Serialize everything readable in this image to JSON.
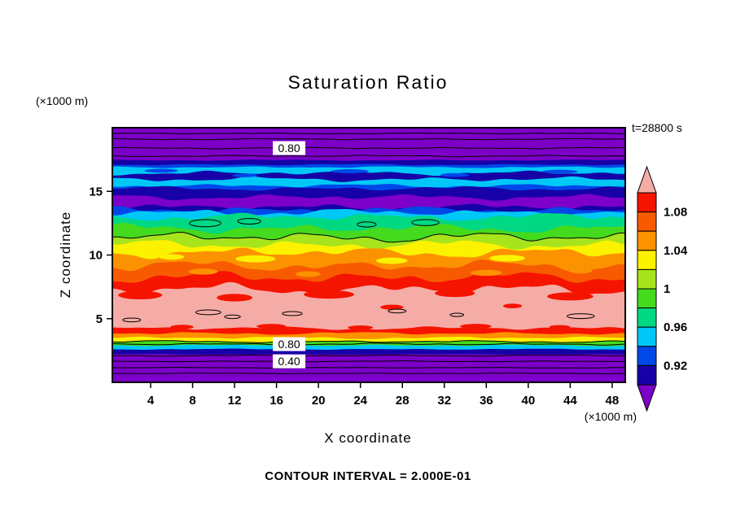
{
  "chart_data": {
    "type": "filled_contour",
    "title": "Saturation Ratio",
    "xlabel": "X coordinate",
    "ylabel": "Z coordinate",
    "x_unit": "(×1000 m)",
    "y_unit": "(×1000 m)",
    "time_label": "t=28800 s",
    "contour_interval_label": "CONTOUR INTERVAL = 2.000E-01",
    "x_ticks": [
      4,
      8,
      12,
      16,
      20,
      24,
      28,
      32,
      36,
      40,
      44,
      48
    ],
    "y_ticks": [
      5,
      10,
      15
    ],
    "xlim": [
      0.35,
      49.25
    ],
    "ylim": [
      0,
      20
    ],
    "grid": false,
    "legend_position": "right-colorbar",
    "palette": {
      "purple": "#7C00C8",
      "navy": "#1600A6",
      "blue": "#0048E8",
      "cyan": "#00C8F6",
      "spring": "#00D884",
      "green": "#44DA1E",
      "ygreen": "#A8E41C",
      "yellow": "#FCF200",
      "orange": "#FC9200",
      "orangered": "#F85A00",
      "red": "#F51400",
      "salmon": "#F6ACA6"
    },
    "colorbar": {
      "levels": [
        0.9,
        0.92,
        0.94,
        0.96,
        0.98,
        1.0,
        1.02,
        1.04,
        1.06,
        1.08,
        1.1
      ],
      "segment_colors": [
        "red",
        "orangered",
        "orange",
        "yellow",
        "ygreen",
        "green",
        "spring",
        "cyan",
        "blue",
        "navy"
      ],
      "arrow_top": "salmon",
      "arrow_bottom": "purple",
      "labels": [
        {
          "text": "1.08",
          "boundary": 1
        },
        {
          "text": "1.04",
          "boundary": 3
        },
        {
          "text": "1",
          "boundary": 5
        },
        {
          "text": "0.96",
          "boundary": 7
        },
        {
          "text": "0.92",
          "boundary": 9
        }
      ]
    },
    "boundaries": [
      {
        "z": 20.0,
        "amp": 0.0,
        "seed": 0
      },
      {
        "z": 17.45,
        "amp": 0.05,
        "seed": 11
      },
      {
        "z": 17.1,
        "amp": 0.07,
        "seed": 12
      },
      {
        "z": 16.9,
        "amp": 0.08,
        "seed": 34
      },
      {
        "z": 15.45,
        "amp": 0.18,
        "seed": 13
      },
      {
        "z": 15.22,
        "amp": 0.2,
        "seed": 35
      },
      {
        "z": 14.55,
        "amp": 0.26,
        "seed": 14
      },
      {
        "z": 13.75,
        "amp": 0.3,
        "seed": 15
      },
      {
        "z": 13.55,
        "amp": 0.31,
        "seed": 36
      },
      {
        "z": 13.35,
        "amp": 0.32,
        "seed": 16
      },
      {
        "z": 13.0,
        "amp": 0.35,
        "seed": 17
      },
      {
        "z": 12.1,
        "amp": 0.42,
        "seed": 18
      },
      {
        "z": 11.4,
        "amp": 0.44,
        "seed": 19
      },
      {
        "z": 10.8,
        "amp": 0.44,
        "seed": 20
      },
      {
        "z": 10.2,
        "amp": 0.48,
        "seed": 21
      },
      {
        "z": 9.15,
        "amp": 0.5,
        "seed": 22
      },
      {
        "z": 8.25,
        "amp": 0.52,
        "seed": 23
      },
      {
        "z": 7.3,
        "amp": 0.55,
        "seed": 24
      },
      {
        "z": 4.25,
        "amp": 0.16,
        "seed": 25
      },
      {
        "z": 3.85,
        "amp": 0.13,
        "seed": 26
      },
      {
        "z": 3.5,
        "amp": 0.11,
        "seed": 27
      },
      {
        "z": 3.2,
        "amp": 0.09,
        "seed": 28
      },
      {
        "z": 2.9,
        "amp": 0.07,
        "seed": 29
      },
      {
        "z": 2.6,
        "amp": 0.05,
        "seed": 30
      },
      {
        "z": 2.2,
        "amp": 0.03,
        "seed": 33
      },
      {
        "z": 0.0,
        "amp": 0.0,
        "seed": 1
      }
    ],
    "bands": [
      {
        "from": 0,
        "to": 1,
        "color": "purple",
        "value": "< 0.90"
      },
      {
        "from": 1,
        "to": 2,
        "color": "navy",
        "value": "0.90-0.92"
      },
      {
        "from": 2,
        "to": 3,
        "color": "blue",
        "value": "0.92-0.94"
      },
      {
        "from": 3,
        "to": 4,
        "color": "cyan",
        "value": "0.94-0.96"
      },
      {
        "from": 4,
        "to": 5,
        "color": "blue",
        "value": "0.92-0.94"
      },
      {
        "from": 5,
        "to": 6,
        "color": "navy",
        "value": "0.90-0.92"
      },
      {
        "from": 6,
        "to": 7,
        "color": "purple",
        "value": "< 0.90"
      },
      {
        "from": 7,
        "to": 8,
        "color": "navy",
        "value": "0.90-0.92"
      },
      {
        "from": 8,
        "to": 9,
        "color": "blue",
        "value": "0.92-0.94"
      },
      {
        "from": 9,
        "to": 10,
        "color": "cyan",
        "value": "0.94-0.96"
      },
      {
        "from": 10,
        "to": 11,
        "color": "spring",
        "value": "0.96-0.98"
      },
      {
        "from": 11,
        "to": 12,
        "color": "green",
        "value": "0.98-1.00"
      },
      {
        "from": 12,
        "to": 13,
        "color": "ygreen",
        "value": "1.00-1.02"
      },
      {
        "from": 13,
        "to": 14,
        "color": "yellow",
        "value": "1.02-1.04"
      },
      {
        "from": 14,
        "to": 15,
        "color": "orange",
        "value": "1.04-1.06"
      },
      {
        "from": 15,
        "to": 16,
        "color": "orangered",
        "value": "1.06-1.08"
      },
      {
        "from": 16,
        "to": 17,
        "color": "red",
        "value": "1.08-1.10"
      },
      {
        "from": 17,
        "to": 18,
        "color": "salmon",
        "value": "> 1.10"
      },
      {
        "from": 18,
        "to": 19,
        "color": "red",
        "value": "1.08-1.10"
      },
      {
        "from": 19,
        "to": 20,
        "color": "orange",
        "value": "1.04-1.06"
      },
      {
        "from": 20,
        "to": 21,
        "color": "yellow",
        "value": "1.02-1.04"
      },
      {
        "from": 21,
        "to": 22,
        "color": "green",
        "value": "0.98-1.00"
      },
      {
        "from": 22,
        "to": 23,
        "color": "cyan",
        "value": "0.94-0.96"
      },
      {
        "from": 23,
        "to": 24,
        "color": "navy",
        "value": "0.90-0.92"
      },
      {
        "from": 24,
        "to": 25,
        "color": "purple",
        "value": "< 0.90"
      }
    ],
    "overlay_bands": [
      {
        "color": "navy",
        "top": {
          "z": 16.45,
          "amp": 0.22,
          "seed": 31
        },
        "bottom": {
          "z": 15.95,
          "amp": 0.22,
          "seed": 32
        }
      }
    ],
    "blobs": [
      {
        "x": 5,
        "z": 16.62,
        "rx": 1.6,
        "ry": 0.15,
        "color": "blue"
      },
      {
        "x": 13,
        "z": 16.25,
        "rx": 1.2,
        "ry": 0.14,
        "color": "blue"
      },
      {
        "x": 23,
        "z": 16.58,
        "rx": 1.8,
        "ry": 0.16,
        "color": "blue"
      },
      {
        "x": 33,
        "z": 16.28,
        "rx": 1.4,
        "ry": 0.15,
        "color": "blue"
      },
      {
        "x": 43,
        "z": 16.55,
        "rx": 1.7,
        "ry": 0.15,
        "color": "blue"
      },
      {
        "x": 9.2,
        "z": 12.5,
        "rx": 1.5,
        "ry": 0.28,
        "color": "spring",
        "outline": true
      },
      {
        "x": 13.4,
        "z": 12.65,
        "rx": 1.1,
        "ry": 0.22,
        "color": "spring",
        "outline": true
      },
      {
        "x": 24.6,
        "z": 12.4,
        "rx": 0.9,
        "ry": 0.2,
        "color": "spring",
        "outline": true
      },
      {
        "x": 30.2,
        "z": 12.55,
        "rx": 1.3,
        "ry": 0.24,
        "color": "spring",
        "outline": true
      },
      {
        "x": 6,
        "z": 9.85,
        "rx": 1.2,
        "ry": 0.22,
        "color": "yellow"
      },
      {
        "x": 14,
        "z": 9.7,
        "rx": 1.9,
        "ry": 0.28,
        "color": "yellow"
      },
      {
        "x": 27,
        "z": 9.55,
        "rx": 1.5,
        "ry": 0.25,
        "color": "yellow"
      },
      {
        "x": 38,
        "z": 9.75,
        "rx": 1.7,
        "ry": 0.26,
        "color": "yellow"
      },
      {
        "x": 9,
        "z": 8.7,
        "rx": 1.4,
        "ry": 0.24,
        "color": "orange"
      },
      {
        "x": 19,
        "z": 8.5,
        "rx": 1.2,
        "ry": 0.22,
        "color": "orange"
      },
      {
        "x": 36,
        "z": 8.6,
        "rx": 1.5,
        "ry": 0.24,
        "color": "orange"
      },
      {
        "x": 45,
        "z": 8.75,
        "rx": 1.1,
        "ry": 0.2,
        "color": "orange"
      },
      {
        "x": 3,
        "z": 6.85,
        "rx": 2.1,
        "ry": 0.33,
        "color": "red"
      },
      {
        "x": 12,
        "z": 6.65,
        "rx": 1.7,
        "ry": 0.3,
        "color": "red"
      },
      {
        "x": 21,
        "z": 6.9,
        "rx": 2.4,
        "ry": 0.33,
        "color": "red"
      },
      {
        "x": 33,
        "z": 7.0,
        "rx": 1.9,
        "ry": 0.3,
        "color": "red"
      },
      {
        "x": 44,
        "z": 6.75,
        "rx": 2.2,
        "ry": 0.32,
        "color": "red"
      },
      {
        "x": 27,
        "z": 5.9,
        "rx": 1.1,
        "ry": 0.2,
        "color": "red"
      },
      {
        "x": 38.5,
        "z": 6.0,
        "rx": 0.9,
        "ry": 0.18,
        "color": "red"
      },
      {
        "x": 2.2,
        "z": 4.9,
        "rx": 0.85,
        "ry": 0.15,
        "color": "salmon",
        "outline": true
      },
      {
        "x": 9.5,
        "z": 5.5,
        "rx": 1.2,
        "ry": 0.19,
        "color": "salmon",
        "outline": true
      },
      {
        "x": 11.8,
        "z": 5.15,
        "rx": 0.75,
        "ry": 0.14,
        "color": "salmon",
        "outline": true
      },
      {
        "x": 17.5,
        "z": 5.4,
        "rx": 0.95,
        "ry": 0.16,
        "color": "salmon",
        "outline": true
      },
      {
        "x": 27.5,
        "z": 5.6,
        "rx": 0.85,
        "ry": 0.15,
        "color": "salmon",
        "outline": true
      },
      {
        "x": 33.2,
        "z": 5.3,
        "rx": 0.65,
        "ry": 0.13,
        "color": "salmon",
        "outline": true
      },
      {
        "x": 45,
        "z": 5.2,
        "rx": 1.3,
        "ry": 0.19,
        "color": "salmon",
        "outline": true
      },
      {
        "x": 7,
        "z": 4.35,
        "rx": 1.1,
        "ry": 0.17,
        "color": "red"
      },
      {
        "x": 15.5,
        "z": 4.4,
        "rx": 1.4,
        "ry": 0.19,
        "color": "red"
      },
      {
        "x": 24,
        "z": 4.3,
        "rx": 1.2,
        "ry": 0.17,
        "color": "red"
      },
      {
        "x": 35,
        "z": 4.4,
        "rx": 1.5,
        "ry": 0.19,
        "color": "red"
      },
      {
        "x": 43,
        "z": 4.35,
        "rx": 1.0,
        "ry": 0.15,
        "color": "red"
      }
    ],
    "line_contours": [
      {
        "z": 19.55,
        "amp": 0.04,
        "seed": 41
      },
      {
        "z": 19.1,
        "amp": 0.05,
        "seed": 42
      },
      {
        "z": 18.4,
        "amp": 0.06,
        "seed": 43
      },
      {
        "z": 17.78,
        "amp": 0.06,
        "seed": 44
      },
      {
        "z": 11.4,
        "amp": 0.44,
        "seed": 19
      },
      {
        "z": 3.2,
        "amp": 0.09,
        "seed": 28
      },
      {
        "z": 3.0,
        "amp": 0.08,
        "seed": 45
      },
      {
        "z": 2.1,
        "amp": 0.05,
        "seed": 46
      },
      {
        "z": 1.65,
        "amp": 0.04,
        "seed": 47
      },
      {
        "z": 1.15,
        "amp": 0.03,
        "seed": 48
      },
      {
        "z": 0.7,
        "amp": 0.03,
        "seed": 49
      }
    ],
    "contour_labels": [
      {
        "text": "0.80",
        "x": 17.2,
        "z": 18.4
      },
      {
        "text": "0.80",
        "x": 17.2,
        "z": 3.0
      },
      {
        "text": "0.40",
        "x": 17.2,
        "z": 1.65
      }
    ]
  }
}
